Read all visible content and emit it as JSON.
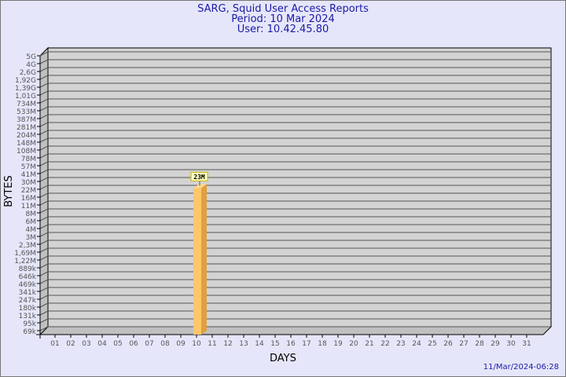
{
  "title": "SARG, Squid User Access Reports",
  "period": "Period: 10 Mar 2024",
  "user": "User: 10.42.45.80",
  "timestamp": "11/Mar/2024-06:28",
  "colors": {
    "background": "#e6e6fa",
    "plot": "#d3d3d3",
    "bar": "#ffc66a",
    "bar_side": "#e0a040",
    "title": "#1a1aa6"
  },
  "chart_data": {
    "type": "bar",
    "xlabel": "DAYS",
    "ylabel": "BYTES",
    "y_scale": "log",
    "y_ticks": [
      "5G",
      "4G",
      "2,6G",
      "1,92G",
      "1,39G",
      "1,01G",
      "734M",
      "533M",
      "387M",
      "281M",
      "204M",
      "148M",
      "108M",
      "78M",
      "57M",
      "41M",
      "30M",
      "22M",
      "16M",
      "11M",
      "8M",
      "6M",
      "4M",
      "3M",
      "2,3M",
      "1,69M",
      "1,22M",
      "889k",
      "646k",
      "469k",
      "341k",
      "247k",
      "180k",
      "131k",
      "95k",
      "69k"
    ],
    "categories": [
      "01",
      "02",
      "03",
      "04",
      "05",
      "06",
      "07",
      "08",
      "09",
      "10",
      "11",
      "12",
      "13",
      "14",
      "15",
      "16",
      "17",
      "18",
      "19",
      "20",
      "21",
      "22",
      "23",
      "24",
      "25",
      "26",
      "27",
      "28",
      "29",
      "30",
      "31"
    ],
    "bars": [
      {
        "day": "10",
        "value_label": "23M",
        "value": 23000000
      }
    ],
    "grid": true
  }
}
